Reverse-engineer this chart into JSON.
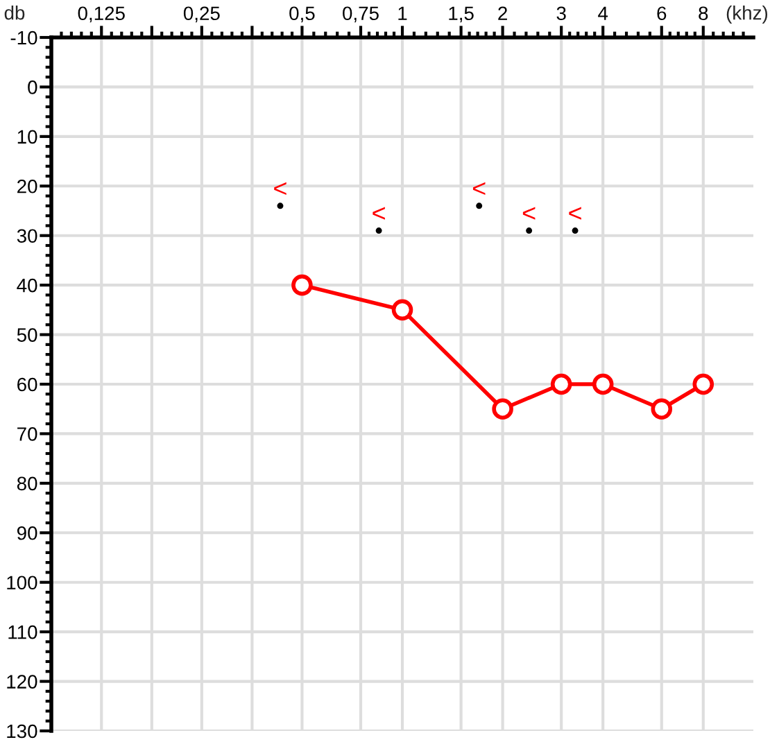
{
  "chart_data": {
    "type": "line",
    "xlabel": "(khz)",
    "ylabel": "db",
    "x": [
      0.5,
      1,
      2,
      3,
      4,
      6,
      8
    ],
    "series": [
      {
        "color": "#ff0000",
        "values": [
          40,
          45,
          65,
          60,
          60,
          65,
          60
        ]
      },
      {
        "type": "scatter",
        "color": "#000000",
        "x": [
          0.43,
          0.85,
          1.7,
          2.4,
          3.3
        ],
        "values": [
          24,
          29,
          24,
          29,
          29
        ]
      }
    ],
    "marker": "circle",
    "line_style": "solid",
    "grid": true,
    "log": "x",
    "xlim": [
      0.0884,
      11.31
    ],
    "xticks": [
      {
        "value": 0.125,
        "label": "0,125"
      },
      {
        "value": 0.177,
        "label": null
      },
      {
        "value": 0.25,
        "label": "0,25"
      },
      {
        "value": 0.354,
        "label": null
      },
      {
        "value": 0.5,
        "label": "0,5"
      },
      {
        "value": 0.75,
        "label": "0,75"
      },
      1,
      {
        "value": 1.5,
        "label": "1,5"
      },
      2,
      3,
      4,
      6,
      8
    ],
    "ylim": [
      130,
      -10
    ],
    "yticks": [
      -10,
      0,
      10,
      20,
      30,
      40,
      50,
      60,
      70,
      80,
      90,
      100,
      110,
      120,
      130
    ],
    "annotations": [
      {
        "text": "<",
        "x": 0.43,
        "y": 24
      },
      {
        "text": "<",
        "x": 0.85,
        "y": 29
      },
      {
        "text": "<",
        "x": 1.7,
        "y": 24
      },
      {
        "text": "<",
        "x": 2.4,
        "y": 29
      },
      {
        "text": "<",
        "x": 3.3,
        "y": 29
      }
    ]
  }
}
